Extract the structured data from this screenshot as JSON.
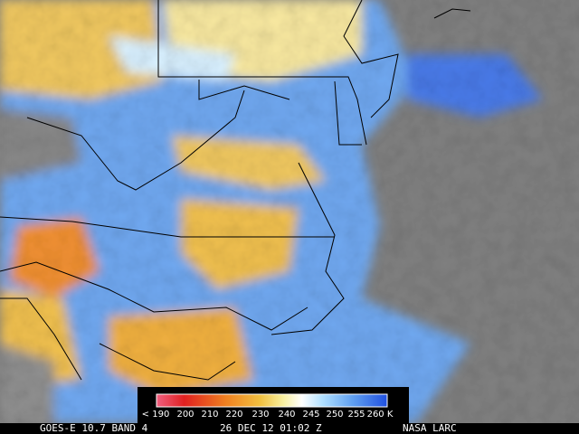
{
  "legend": {
    "labels": [
      "< 190",
      "200",
      "210",
      "220",
      "230",
      "240",
      "245",
      "250",
      "255",
      "260 K"
    ]
  },
  "footer": {
    "satellite": "GOES-E 10.7 BAND 4",
    "time": "26 DEC 12 01:02 Z",
    "credit": "NASA LARC"
  }
}
